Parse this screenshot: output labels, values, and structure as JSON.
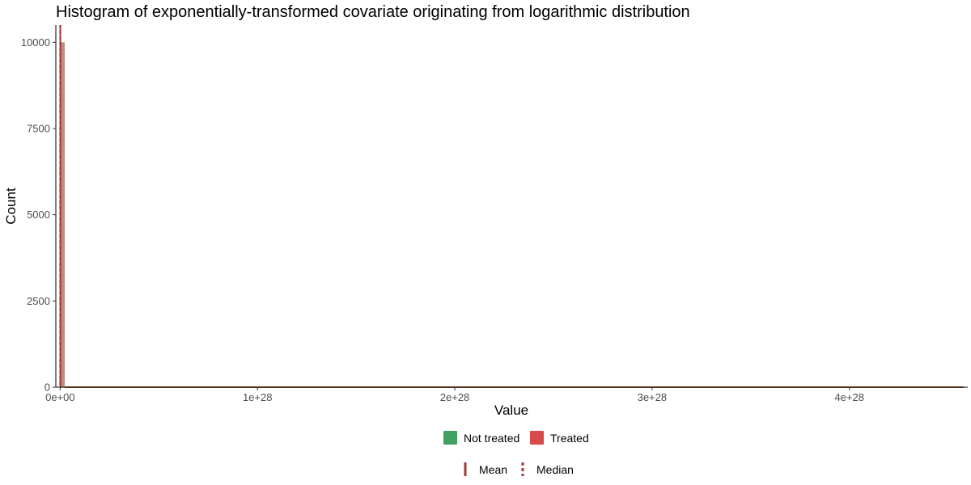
{
  "chart_data": {
    "type": "histogram",
    "title": "Histogram of exponentially-transformed covariate originating from logarithmic distribution",
    "xlabel": "Value",
    "ylabel": "Count",
    "xlim": [
      -2.2e+26,
      4.6e+28
    ],
    "ylim": [
      0,
      10500
    ],
    "x_ticks": [
      0,
      1e+28,
      2e+28,
      3e+28,
      4e+28
    ],
    "x_tick_labels": [
      "0e+00",
      "1e+28",
      "2e+28",
      "3e+28",
      "4e+28"
    ],
    "y_ticks": [
      0,
      2500,
      5000,
      7500,
      10000
    ],
    "y_tick_labels": [
      "0",
      "2500",
      "5000",
      "7500",
      "10000"
    ],
    "grid": false,
    "legend_position": "bottom",
    "series": [
      {
        "name": "Not treated",
        "color": "#41A05F",
        "bars": [
          {
            "x0": 0,
            "x1": 2.3e+26,
            "count": 10000
          }
        ],
        "baseline_range": [
          2.3e+26,
          4.58e+28
        ]
      },
      {
        "name": "Treated",
        "color": "#D94B4B",
        "bars": [
          {
            "x0": 0,
            "x1": 2.3e+26,
            "count": 10000
          }
        ],
        "baseline_range": [
          2.3e+26,
          4.58e+28
        ]
      }
    ],
    "reference_lines": [
      {
        "name": "Mean",
        "style": "solid",
        "color": "#A33A3A",
        "x": 1e+25
      },
      {
        "name": "Median",
        "style": "dashed",
        "color": "#A33A3A",
        "x": 0
      }
    ],
    "baseline_color": "#A0623F"
  }
}
